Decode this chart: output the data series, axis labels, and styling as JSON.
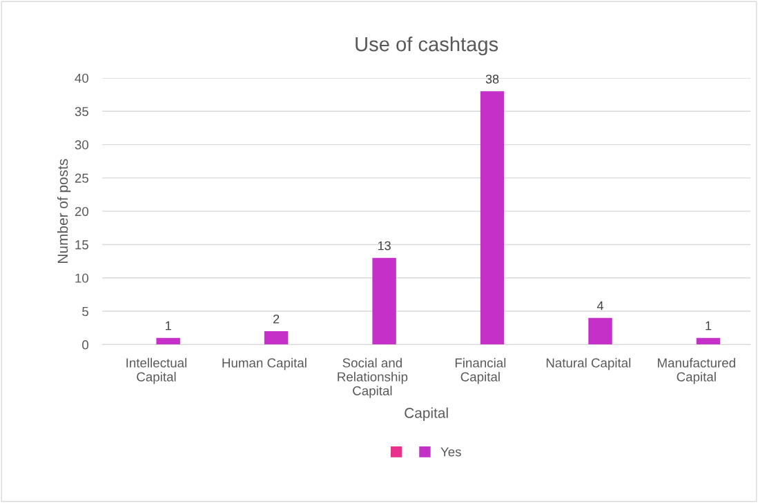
{
  "chart_data": {
    "type": "bar",
    "title": "Use of cashtags",
    "xlabel": "Capital",
    "ylabel": "Number of posts",
    "categories": [
      "Intellectual Capital",
      "Human Capital",
      "Social and Relationship Capital",
      "Financial Capital",
      "Natural Capital",
      "Manufactured Capital"
    ],
    "series": [
      {
        "color": "#e8308c",
        "values": [
          null,
          null,
          null,
          null,
          null,
          null
        ]
      },
      {
        "name": "Yes",
        "color": "#c530c8",
        "values": [
          1,
          2,
          13,
          38,
          4,
          1
        ],
        "data_labels": true
      }
    ],
    "ylim": [
      0,
      40
    ],
    "yticks": [
      0,
      5,
      10,
      15,
      20,
      25,
      30,
      35,
      40
    ],
    "grid": "y",
    "legend": "bottom"
  }
}
